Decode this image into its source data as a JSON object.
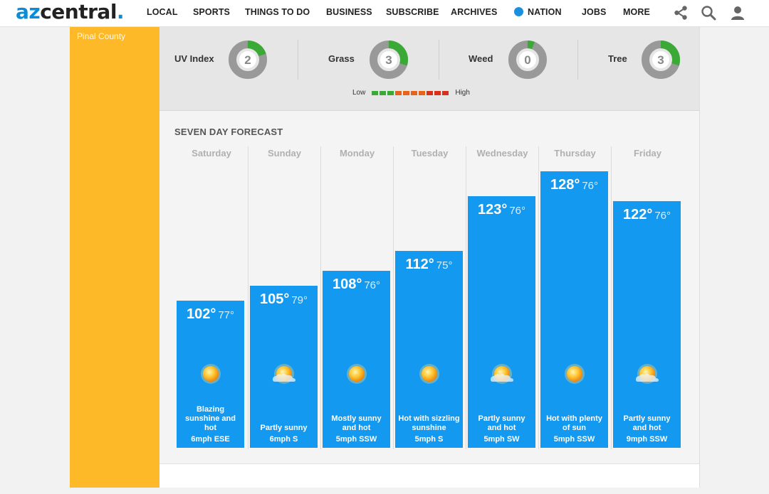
{
  "header": {
    "logo": {
      "az": "az",
      "central": "central",
      "dot": "."
    },
    "nav": [
      {
        "label": "LOCAL"
      },
      {
        "label": "SPORTS"
      },
      {
        "label": "THINGS TO DO"
      },
      {
        "label": "BUSINESS"
      },
      {
        "label": "SUBSCRIBE"
      },
      {
        "label": "ARCHIVES"
      },
      {
        "label": "NATION"
      },
      {
        "label": "JOBS"
      },
      {
        "label": "MORE"
      }
    ],
    "icons": [
      "share-icon",
      "search-icon",
      "user-icon"
    ],
    "colors": {
      "brand": "#0a8cd6",
      "nation_dot": "#1a8fe0"
    }
  },
  "sidebar": {
    "label": "Pinal County",
    "color": "#fdb927"
  },
  "pollen": {
    "items": [
      {
        "label": "UV Index",
        "value": "2",
        "level": 0.2
      },
      {
        "label": "Grass",
        "value": "3",
        "level": 0.3
      },
      {
        "label": "Weed",
        "value": "0",
        "level": 0.06
      },
      {
        "label": "Tree",
        "value": "3",
        "level": 0.3
      }
    ],
    "scale": {
      "low": "Low",
      "high": "High",
      "colors": [
        "#3aa935",
        "#3aa935",
        "#3aa935",
        "#e8631a",
        "#e8631a",
        "#e8631a",
        "#e8631a",
        "#d8301a",
        "#d8301a",
        "#d8301a"
      ]
    },
    "gauge_colors": {
      "fill": "#3aa935",
      "track": "#999999"
    }
  },
  "forecast": {
    "title": "SEVEN DAY FORECAST",
    "bar_color": "#1499f0",
    "days": [
      {
        "day": "Saturday",
        "high": "102°",
        "low": "77°",
        "high_value": 102,
        "condition": "Blazing sunshine and hot",
        "wind": "6mph ESE",
        "icon": "sun-icon"
      },
      {
        "day": "Sunday",
        "high": "105°",
        "low": "79°",
        "high_value": 105,
        "condition": "Partly sunny",
        "wind": "6mph S",
        "icon": "partly-sunny-icon"
      },
      {
        "day": "Monday",
        "high": "108°",
        "low": "76°",
        "high_value": 108,
        "condition": "Mostly sunny and hot",
        "wind": "5mph SSW",
        "icon": "sun-icon"
      },
      {
        "day": "Tuesday",
        "high": "112°",
        "low": "75°",
        "high_value": 112,
        "condition": "Hot with sizzling sunshine",
        "wind": "5mph S",
        "icon": "sun-icon"
      },
      {
        "day": "Wednesday",
        "high": "123°",
        "low": "76°",
        "high_value": 123,
        "condition": "Partly sunny and hot",
        "wind": "5mph SW",
        "icon": "partly-sunny-icon"
      },
      {
        "day": "Thursday",
        "high": "128°",
        "low": "76°",
        "high_value": 128,
        "condition": "Hot with plenty of sun",
        "wind": "5mph SSW",
        "icon": "sun-icon"
      },
      {
        "day": "Friday",
        "high": "122°",
        "low": "76°",
        "high_value": 122,
        "condition": "Partly sunny and hot",
        "wind": "9mph SSW",
        "icon": "partly-sunny-icon"
      }
    ]
  }
}
